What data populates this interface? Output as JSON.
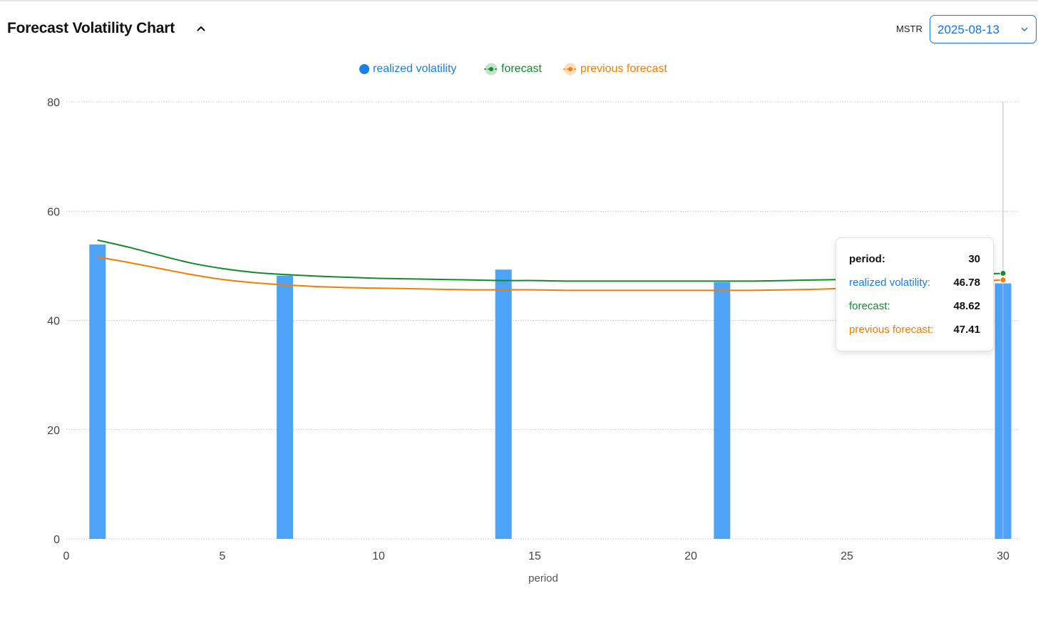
{
  "header": {
    "title": "Forecast Volatility Chart",
    "ticker": "MSTR",
    "date_value": "2025-08-13"
  },
  "icons": {
    "collapse": "chevron-up-icon",
    "date_dropdown": "chevron-down-icon"
  },
  "colors": {
    "realized": "#4da3f7",
    "realized_text": "#1a7fe6",
    "forecast": "#138a2e",
    "previous": "#f57c00",
    "grid": "#b5b5b5"
  },
  "legend": {
    "realized": "realized volatility",
    "forecast": "forecast",
    "previous": "previous forecast"
  },
  "tooltip": {
    "period_label": "period:",
    "period_value": "30",
    "realized_label": "realized volatility:",
    "realized_value": "46.78",
    "forecast_label": "forecast:",
    "forecast_value": "48.62",
    "previous_label": "previous forecast:",
    "previous_value": "47.41"
  },
  "chart_data": {
    "type": "bar",
    "xlabel": "period",
    "ylabel": "",
    "xlim": [
      0,
      30
    ],
    "ylim": [
      0,
      80
    ],
    "xticks": [
      0,
      5,
      10,
      15,
      20,
      25,
      30
    ],
    "yticks": [
      0,
      20,
      40,
      60,
      80
    ],
    "grid": true,
    "legend_position": "top-center",
    "bars": {
      "name": "realized volatility",
      "x": [
        1,
        7,
        14,
        21,
        30
      ],
      "values": [
        53.9,
        48.2,
        49.3,
        47.0,
        46.78
      ]
    },
    "series": [
      {
        "name": "forecast",
        "type": "line",
        "x": [
          1,
          2,
          3,
          4,
          5,
          6,
          7,
          8,
          9,
          10,
          11,
          12,
          13,
          14,
          15,
          16,
          17,
          18,
          19,
          20,
          21,
          22,
          23,
          24,
          25,
          26,
          27,
          28,
          29,
          30
        ],
        "values": [
          54.7,
          53.4,
          51.9,
          50.5,
          49.5,
          48.8,
          48.4,
          48.1,
          47.9,
          47.7,
          47.6,
          47.5,
          47.4,
          47.3,
          47.3,
          47.2,
          47.2,
          47.2,
          47.2,
          47.2,
          47.2,
          47.2,
          47.3,
          47.4,
          47.5,
          47.7,
          47.9,
          48.1,
          48.4,
          48.62
        ]
      },
      {
        "name": "previous forecast",
        "type": "line",
        "x": [
          1,
          2,
          3,
          4,
          5,
          6,
          7,
          8,
          9,
          10,
          11,
          12,
          13,
          14,
          15,
          16,
          17,
          18,
          19,
          20,
          21,
          22,
          23,
          24,
          25,
          26,
          27,
          28,
          29,
          30
        ],
        "values": [
          51.6,
          50.6,
          49.5,
          48.4,
          47.5,
          46.9,
          46.5,
          46.2,
          46.0,
          45.9,
          45.8,
          45.7,
          45.6,
          45.6,
          45.6,
          45.5,
          45.5,
          45.5,
          45.5,
          45.5,
          45.5,
          45.5,
          45.6,
          45.7,
          45.9,
          46.1,
          46.4,
          46.7,
          47.1,
          47.41
        ]
      }
    ],
    "hover": {
      "x": 30
    }
  }
}
